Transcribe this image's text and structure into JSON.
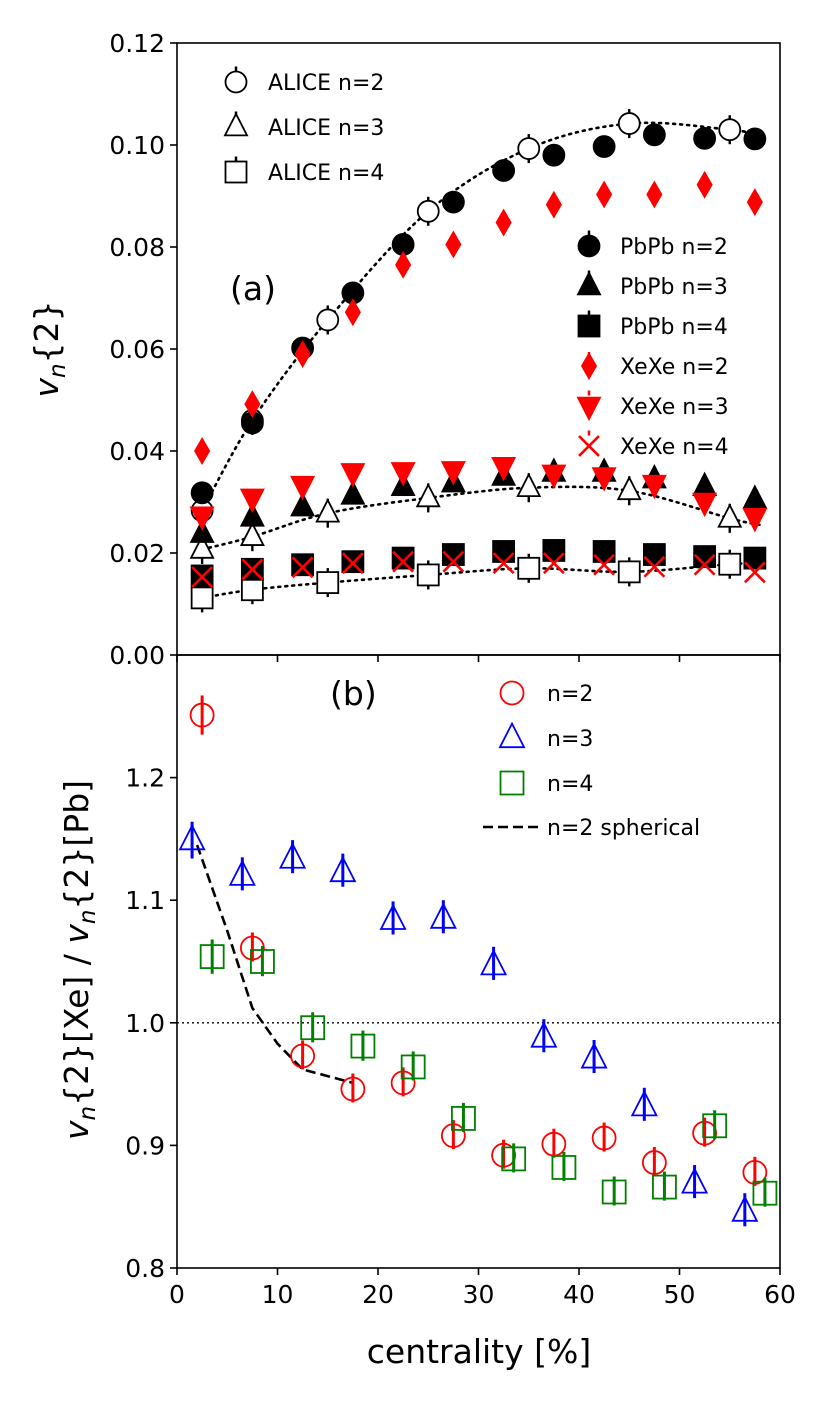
{
  "chart_data": [
    {
      "panel": "a",
      "type": "scatter",
      "panel_label": "(a)",
      "xlabel": "",
      "ylabel": "v_n{2}",
      "ylabel_parts": {
        "main": "v",
        "sub": "n",
        "rest": "{2}"
      },
      "xlim": [
        0,
        60
      ],
      "ylim": [
        0,
        0.12
      ],
      "yticks": [
        "0.00",
        "0.02",
        "0.04",
        "0.06",
        "0.08",
        "0.10",
        "0.12"
      ],
      "series": [
        {
          "name": "ALICE n=2",
          "marker": "circle",
          "fill": "open",
          "color": "#000000",
          "x": [
            2.5,
            7.5,
            15,
            25,
            35,
            45,
            55
          ],
          "y": [
            0.0283,
            0.046,
            0.0657,
            0.087,
            0.0993,
            0.1042,
            0.103
          ]
        },
        {
          "name": "ALICE n=3",
          "marker": "triangle",
          "fill": "open",
          "color": "#000000",
          "x": [
            2.5,
            7.5,
            15,
            25,
            35,
            45,
            55
          ],
          "y": [
            0.0207,
            0.0232,
            0.0278,
            0.0308,
            0.0328,
            0.0322,
            0.0268
          ]
        },
        {
          "name": "ALICE n=4",
          "marker": "square",
          "fill": "open",
          "color": "#000000",
          "x": [
            2.5,
            7.5,
            15,
            25,
            35,
            45,
            55
          ],
          "y": [
            0.0112,
            0.0128,
            0.0142,
            0.0157,
            0.017,
            0.0163,
            0.0178
          ]
        },
        {
          "name": "PbPb n=2",
          "marker": "circle",
          "fill": "solid",
          "color": "#000000",
          "x": [
            2.5,
            7.5,
            12.5,
            17.5,
            22.5,
            27.5,
            32.5,
            37.5,
            42.5,
            47.5,
            52.5,
            57.5
          ],
          "y": [
            0.0318,
            0.0455,
            0.0602,
            0.071,
            0.0805,
            0.0888,
            0.095,
            0.098,
            0.0997,
            0.102,
            0.1013,
            0.1012
          ]
        },
        {
          "name": "PbPb n=3",
          "marker": "triangle",
          "fill": "solid",
          "color": "#000000",
          "x": [
            2.5,
            7.5,
            12.5,
            17.5,
            22.5,
            27.5,
            32.5,
            37.5,
            42.5,
            47.5,
            52.5,
            57.5
          ],
          "y": [
            0.0238,
            0.027,
            0.029,
            0.0313,
            0.033,
            0.0337,
            0.035,
            0.0358,
            0.0358,
            0.0345,
            0.033,
            0.0305
          ]
        },
        {
          "name": "PbPb n=4",
          "marker": "square",
          "fill": "solid",
          "color": "#000000",
          "x": [
            2.5,
            7.5,
            12.5,
            17.5,
            22.5,
            27.5,
            32.5,
            37.5,
            42.5,
            47.5,
            52.5,
            57.5
          ],
          "y": [
            0.0155,
            0.0168,
            0.0177,
            0.0183,
            0.019,
            0.0197,
            0.0203,
            0.0205,
            0.0203,
            0.0197,
            0.0193,
            0.019
          ]
        },
        {
          "name": "XeXe n=2",
          "marker": "diamond",
          "fill": "solid",
          "color": "#ff0000",
          "x": [
            2.5,
            7.5,
            12.5,
            17.5,
            22.5,
            27.5,
            32.5,
            37.5,
            42.5,
            47.5,
            52.5,
            57.5
          ],
          "y": [
            0.04,
            0.0492,
            0.059,
            0.0672,
            0.0765,
            0.0805,
            0.0848,
            0.0883,
            0.0903,
            0.0903,
            0.0922,
            0.0888
          ]
        },
        {
          "name": "XeXe n=3",
          "marker": "triangle-down",
          "fill": "solid",
          "color": "#ff0000",
          "x": [
            2.5,
            7.5,
            12.5,
            17.5,
            22.5,
            27.5,
            32.5,
            37.5,
            42.5,
            47.5,
            52.5,
            57.5
          ],
          "y": [
            0.0273,
            0.0308,
            0.0333,
            0.0358,
            0.036,
            0.0362,
            0.037,
            0.0355,
            0.035,
            0.0335,
            0.03,
            0.027
          ]
        },
        {
          "name": "XeXe n=4",
          "marker": "x",
          "fill": "solid",
          "color": "#ff0000",
          "x": [
            2.5,
            7.5,
            12.5,
            17.5,
            22.5,
            27.5,
            32.5,
            37.5,
            42.5,
            47.5,
            52.5,
            57.5
          ],
          "y": [
            0.0153,
            0.0168,
            0.0172,
            0.018,
            0.0183,
            0.0183,
            0.018,
            0.018,
            0.0177,
            0.0173,
            0.0177,
            0.0162
          ]
        }
      ],
      "curves": [
        {
          "name": "ALICE n=2 fit",
          "style": "dotted",
          "x": [
            2.5,
            7.5,
            15,
            25,
            35,
            45,
            55,
            58
          ],
          "y": [
            0.0283,
            0.046,
            0.0657,
            0.087,
            0.0993,
            0.1042,
            0.103,
            0.1018
          ]
        },
        {
          "name": "ALICE n=3 fit",
          "style": "dotted",
          "x": [
            2.5,
            7.5,
            15,
            25,
            35,
            45,
            55,
            58
          ],
          "y": [
            0.0207,
            0.0232,
            0.0278,
            0.0308,
            0.0328,
            0.0322,
            0.0268,
            0.0255
          ]
        },
        {
          "name": "ALICE n=4 fit",
          "style": "dotted",
          "x": [
            2.5,
            7.5,
            15,
            25,
            35,
            45,
            55,
            58
          ],
          "y": [
            0.0112,
            0.0128,
            0.0142,
            0.0157,
            0.017,
            0.0163,
            0.0178,
            0.018
          ]
        }
      ],
      "legends": [
        {
          "position": "top-left",
          "entries": [
            "ALICE n=2",
            "ALICE n=3",
            "ALICE n=4"
          ]
        },
        {
          "position": "right",
          "entries": [
            "PbPb n=2",
            "PbPb n=3",
            "PbPb n=4",
            "XeXe n=2",
            "XeXe n=3",
            "XeXe n=4"
          ]
        }
      ]
    },
    {
      "panel": "b",
      "type": "scatter",
      "panel_label": "(b)",
      "xlabel": "centrality [%]",
      "ylabel": "v_n{2}[Xe] / v_n{2}[Pb]",
      "ylabel_parts": {
        "v1": "v",
        "sub1": "n",
        "mid": "{2}[Xe] / ",
        "v2": "v",
        "sub2": "n",
        "end": "{2}[Pb]"
      },
      "xlim": [
        0,
        60
      ],
      "ylim": [
        0.8,
        1.3
      ],
      "xticks": [
        "0",
        "10",
        "20",
        "30",
        "40",
        "50",
        "60"
      ],
      "yticks": [
        "0.8",
        "0.9",
        "1.0",
        "1.1",
        "1.2"
      ],
      "reference_line": 1.0,
      "series": [
        {
          "name": "n=2",
          "marker": "circle",
          "fill": "open",
          "color": "#ff0000",
          "x": [
            2.5,
            7.5,
            12.5,
            17.5,
            22.5,
            27.5,
            32.5,
            37.5,
            42.5,
            47.5,
            52.5,
            57.5
          ],
          "y": [
            1.251,
            1.061,
            0.973,
            0.946,
            0.951,
            0.908,
            0.892,
            0.901,
            0.906,
            0.886,
            0.91,
            0.878
          ],
          "err": [
            0.016,
            0.01,
            0.007,
            0.005,
            0.006,
            0.006,
            0.006,
            0.006,
            0.006,
            0.006,
            0.006,
            0.006
          ]
        },
        {
          "name": "n=3",
          "marker": "triangle",
          "fill": "open",
          "color": "#0000ff",
          "x": [
            1.5,
            6.5,
            11.5,
            16.5,
            21.5,
            26.5,
            31.5,
            36.5,
            41.5,
            46.5,
            51.5,
            56.5
          ],
          "y": [
            1.149,
            1.12,
            1.134,
            1.123,
            1.084,
            1.085,
            1.047,
            0.988,
            0.971,
            0.932,
            0.869,
            0.846
          ],
          "err": [
            0.015,
            0.012,
            0.012,
            0.012,
            0.012,
            0.012,
            0.012,
            0.012,
            0.012,
            0.012,
            0.012,
            0.012
          ]
        },
        {
          "name": "n=4",
          "marker": "square",
          "fill": "open",
          "color": "#008000",
          "x": [
            3.5,
            8.5,
            13.5,
            18.5,
            23.5,
            28.5,
            33.5,
            38.5,
            43.5,
            48.5,
            53.5,
            58.5
          ],
          "y": [
            1.054,
            1.05,
            0.996,
            0.981,
            0.964,
            0.922,
            0.889,
            0.882,
            0.862,
            0.866,
            0.916,
            0.861
          ],
          "err": [
            0.014,
            0.012,
            0.012,
            0.012,
            0.01,
            0.01,
            0.01,
            0.01,
            0.01,
            0.01,
            0.01,
            0.01
          ]
        }
      ],
      "curves": [
        {
          "name": "n=2 spherical",
          "style": "dashed",
          "x": [
            2,
            5,
            7.5,
            10,
            12.5,
            17.5
          ],
          "y": [
            1.145,
            1.075,
            1.012,
            0.983,
            0.962,
            0.951
          ]
        }
      ],
      "legends": [
        {
          "position": "top-right",
          "entries": [
            "n=2",
            "n=3",
            "n=4",
            "n=2 spherical"
          ]
        }
      ]
    }
  ]
}
